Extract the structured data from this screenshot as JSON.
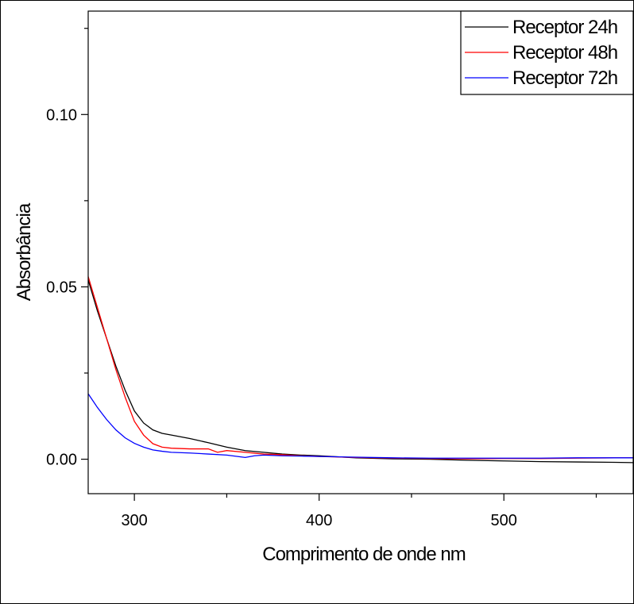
{
  "chart_data": {
    "type": "line",
    "title": "",
    "xlabel": "Comprimento de onde nm",
    "ylabel": "Absorbância",
    "xlim": [
      275,
      570
    ],
    "ylim": [
      -0.01,
      0.13
    ],
    "xticks": [
      300,
      400,
      500
    ],
    "xtick_labels": [
      "300",
      "400",
      "500"
    ],
    "xminor": [
      350,
      450,
      550
    ],
    "yticks": [
      0.0,
      0.05,
      0.1
    ],
    "ytick_labels": [
      "0.00",
      "0.05",
      "0.10"
    ],
    "yminor": [
      0.025,
      0.075,
      0.125
    ],
    "grid": false,
    "legend_position": "top-right",
    "series": [
      {
        "name": "Receptor 24h",
        "color": "#000000",
        "x": [
          275,
          280,
          285,
          290,
          295,
          300,
          305,
          310,
          315,
          320,
          330,
          340,
          350,
          360,
          370,
          380,
          390,
          400,
          420,
          440,
          460,
          480,
          500,
          520,
          540,
          560,
          570
        ],
        "y": [
          0.052,
          0.043,
          0.035,
          0.027,
          0.02,
          0.014,
          0.0105,
          0.0085,
          0.0075,
          0.007,
          0.006,
          0.0048,
          0.0035,
          0.0025,
          0.002,
          0.0015,
          0.0012,
          0.001,
          0.0004,
          0.0001,
          0.0,
          -0.0003,
          -0.0005,
          -0.0007,
          -0.0008,
          -0.0009,
          -0.001
        ]
      },
      {
        "name": "Receptor 48h",
        "color": "#ff0000",
        "x": [
          275,
          280,
          285,
          290,
          295,
          300,
          305,
          310,
          315,
          320,
          330,
          340,
          345,
          350,
          360,
          370,
          380,
          390,
          400,
          420,
          440,
          460,
          480,
          500,
          520,
          540,
          560,
          570
        ],
        "y": [
          0.053,
          0.044,
          0.035,
          0.026,
          0.018,
          0.011,
          0.007,
          0.0045,
          0.0035,
          0.0032,
          0.003,
          0.003,
          0.002,
          0.0025,
          0.002,
          0.0015,
          0.0013,
          0.001,
          0.0008,
          0.0005,
          0.0003,
          0.0002,
          0.0001,
          0.0002,
          0.0002,
          0.0003,
          0.0004,
          0.0004
        ]
      },
      {
        "name": "Receptor 72h",
        "color": "#0000ff",
        "x": [
          275,
          280,
          285,
          290,
          295,
          300,
          305,
          310,
          315,
          320,
          330,
          340,
          350,
          360,
          365,
          370,
          380,
          390,
          400,
          420,
          440,
          460,
          480,
          500,
          520,
          540,
          560,
          570
        ],
        "y": [
          0.019,
          0.015,
          0.0115,
          0.0085,
          0.0062,
          0.0046,
          0.0035,
          0.0027,
          0.0023,
          0.002,
          0.0018,
          0.0015,
          0.0012,
          0.0005,
          0.001,
          0.0012,
          0.001,
          0.0009,
          0.0008,
          0.0006,
          0.0004,
          0.0003,
          0.0003,
          0.0003,
          0.0003,
          0.0004,
          0.0004,
          0.0004
        ]
      }
    ]
  }
}
